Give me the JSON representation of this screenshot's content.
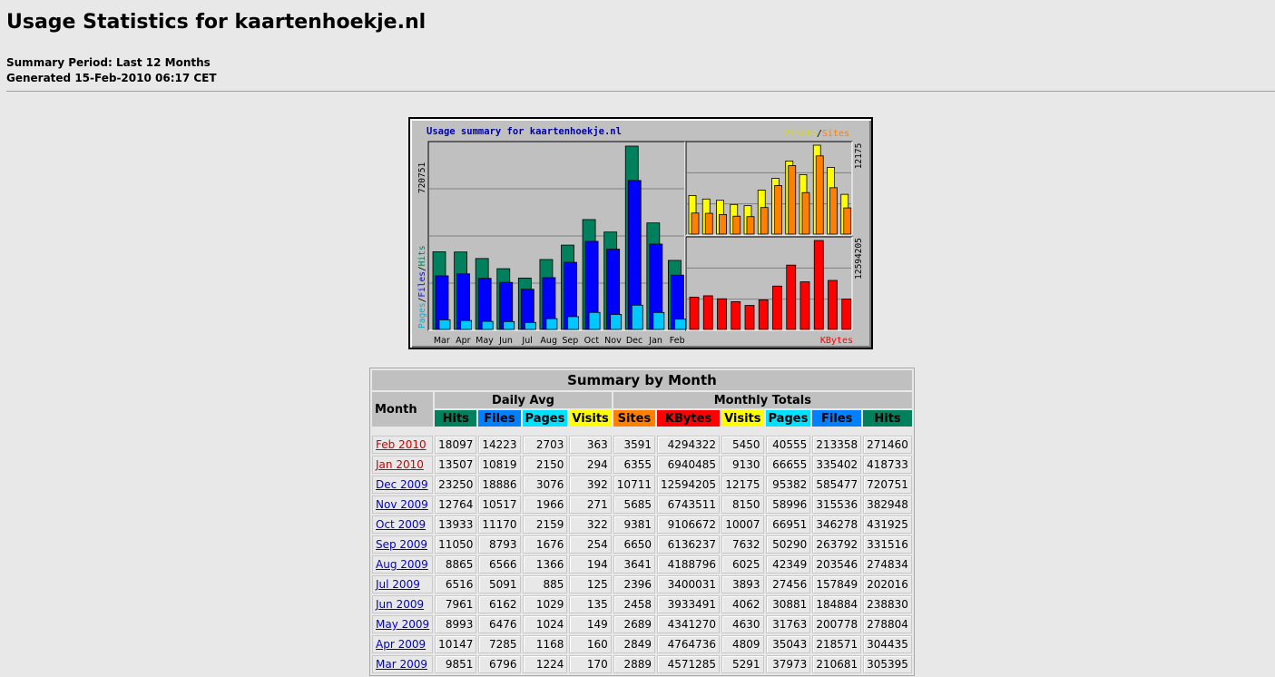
{
  "header": {
    "title": "Usage Statistics for kaartenhoekje.nl",
    "period": "Summary Period: Last 12 Months",
    "generated": "Generated 15-Feb-2010 06:17 CET"
  },
  "colors": {
    "hits": "#00805c",
    "files": "#0000ff",
    "pages": "#00c8ff",
    "visits": "#ffff00",
    "sites": "#ff8000",
    "kbytes": "#ff0000",
    "link_current": "#cc0000",
    "link": "#0000cc"
  },
  "chart_data": {
    "type": "bar",
    "title": "Usage summary for kaartenhoekje.nl",
    "categories": [
      "Mar",
      "Apr",
      "May",
      "Jun",
      "Jul",
      "Aug",
      "Sep",
      "Oct",
      "Nov",
      "Dec",
      "Jan",
      "Feb"
    ],
    "panels": [
      {
        "name": "hits_files_pages",
        "axis_max_label": "720751",
        "legend": [
          "Pages",
          "Files",
          "Hits"
        ],
        "series": [
          {
            "name": "Hits",
            "values": [
              305395,
              304435,
              278804,
              238830,
              202016,
              274834,
              331516,
              431925,
              382948,
              720751,
              418733,
              271460
            ]
          },
          {
            "name": "Files",
            "values": [
              210681,
              218571,
              200778,
              184884,
              157849,
              203546,
              263792,
              346278,
              315536,
              585477,
              335402,
              213358
            ]
          },
          {
            "name": "Pages",
            "values": [
              37973,
              35043,
              31763,
              30881,
              27456,
              42349,
              50290,
              66951,
              58996,
              95382,
              66655,
              40555
            ]
          }
        ]
      },
      {
        "name": "visits_sites",
        "axis_max_label": "12175",
        "legend": [
          "Visits",
          "Sites"
        ],
        "series": [
          {
            "name": "Visits",
            "values": [
              5291,
              4809,
              4630,
              4062,
              3893,
              6025,
              7632,
              10007,
              8150,
              12175,
              9130,
              5450
            ]
          },
          {
            "name": "Sites",
            "values": [
              2889,
              2849,
              2689,
              2458,
              2396,
              3641,
              6650,
              9381,
              5685,
              10711,
              6355,
              3591
            ]
          }
        ]
      },
      {
        "name": "kbytes",
        "axis_max_label": "12594205",
        "legend": [
          "KBytes"
        ],
        "series": [
          {
            "name": "KBytes",
            "values": [
              4571285,
              4764736,
              4341270,
              3933491,
              3400031,
              4188796,
              6136237,
              9106672,
              6743511,
              12594205,
              6940485,
              4294322
            ]
          }
        ]
      }
    ]
  },
  "table": {
    "caption": "Summary by Month",
    "month_header": "Month",
    "daily_avg_header": "Daily Avg",
    "monthly_totals_header": "Monthly Totals",
    "daily_cols": [
      "Hits",
      "Files",
      "Pages",
      "Visits"
    ],
    "total_cols": [
      "Sites",
      "KBytes",
      "Visits",
      "Pages",
      "Files",
      "Hits"
    ],
    "rows": [
      {
        "month": "Feb 2010",
        "current": true,
        "d": [
          "18097",
          "14223",
          "2703",
          "363"
        ],
        "t": [
          "3591",
          "4294322",
          "5450",
          "40555",
          "213358",
          "271460"
        ]
      },
      {
        "month": "Jan 2010",
        "current": true,
        "d": [
          "13507",
          "10819",
          "2150",
          "294"
        ],
        "t": [
          "6355",
          "6940485",
          "9130",
          "66655",
          "335402",
          "418733"
        ]
      },
      {
        "month": "Dec 2009",
        "d": [
          "23250",
          "18886",
          "3076",
          "392"
        ],
        "t": [
          "10711",
          "12594205",
          "12175",
          "95382",
          "585477",
          "720751"
        ]
      },
      {
        "month": "Nov 2009",
        "d": [
          "12764",
          "10517",
          "1966",
          "271"
        ],
        "t": [
          "5685",
          "6743511",
          "8150",
          "58996",
          "315536",
          "382948"
        ]
      },
      {
        "month": "Oct 2009",
        "d": [
          "13933",
          "11170",
          "2159",
          "322"
        ],
        "t": [
          "9381",
          "9106672",
          "10007",
          "66951",
          "346278",
          "431925"
        ]
      },
      {
        "month": "Sep 2009",
        "d": [
          "11050",
          "8793",
          "1676",
          "254"
        ],
        "t": [
          "6650",
          "6136237",
          "7632",
          "50290",
          "263792",
          "331516"
        ]
      },
      {
        "month": "Aug 2009",
        "d": [
          "8865",
          "6566",
          "1366",
          "194"
        ],
        "t": [
          "3641",
          "4188796",
          "6025",
          "42349",
          "203546",
          "274834"
        ]
      },
      {
        "month": "Jul 2009",
        "d": [
          "6516",
          "5091",
          "885",
          "125"
        ],
        "t": [
          "2396",
          "3400031",
          "3893",
          "27456",
          "157849",
          "202016"
        ]
      },
      {
        "month": "Jun 2009",
        "d": [
          "7961",
          "6162",
          "1029",
          "135"
        ],
        "t": [
          "2458",
          "3933491",
          "4062",
          "30881",
          "184884",
          "238830"
        ]
      },
      {
        "month": "May 2009",
        "d": [
          "8993",
          "6476",
          "1024",
          "149"
        ],
        "t": [
          "2689",
          "4341270",
          "4630",
          "31763",
          "200778",
          "278804"
        ]
      },
      {
        "month": "Apr 2009",
        "d": [
          "10147",
          "7285",
          "1168",
          "160"
        ],
        "t": [
          "2849",
          "4764736",
          "4809",
          "35043",
          "218571",
          "304435"
        ]
      },
      {
        "month": "Mar 2009",
        "d": [
          "9851",
          "6796",
          "1224",
          "170"
        ],
        "t": [
          "2889",
          "4571285",
          "5291",
          "37973",
          "210681",
          "305395"
        ]
      }
    ]
  }
}
